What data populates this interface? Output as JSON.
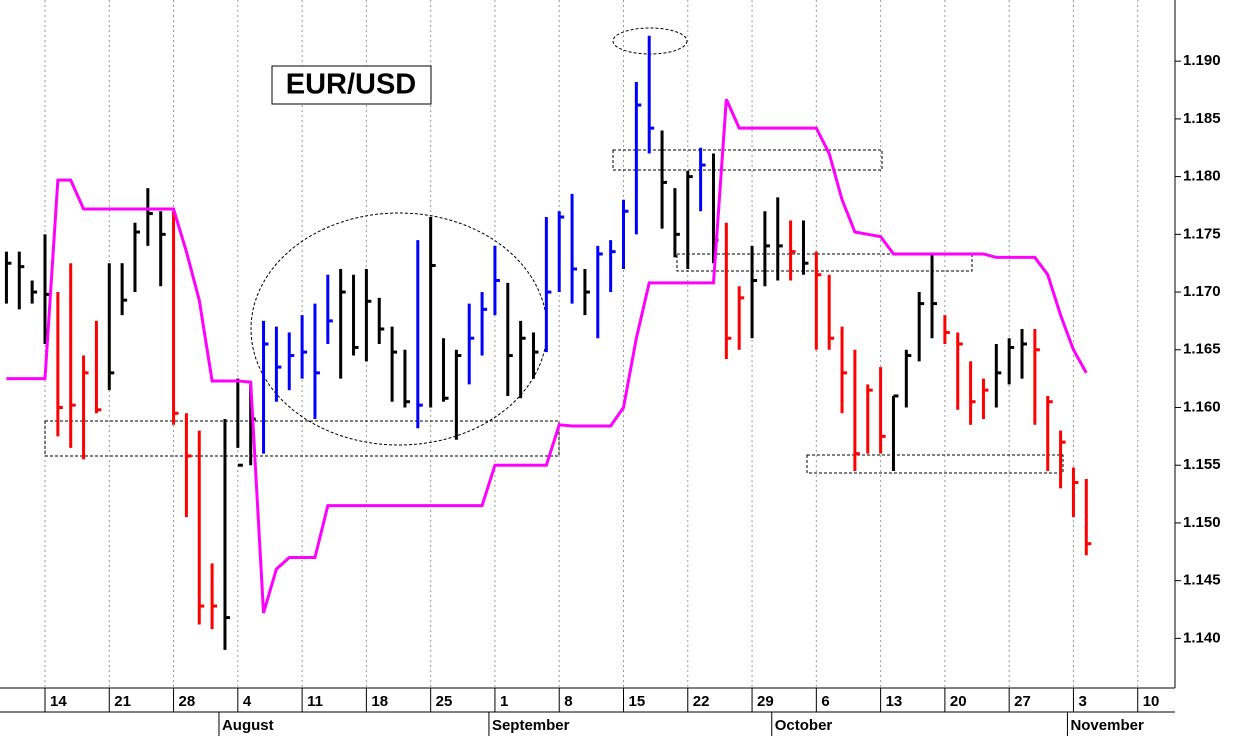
{
  "chart_data": {
    "type": "ohlc",
    "title": "EUR/USD",
    "x": [
      -3,
      -2,
      -1,
      0,
      1,
      2,
      3,
      4,
      5,
      6,
      7,
      8,
      9,
      10,
      11,
      12,
      13,
      14,
      15,
      16,
      17,
      18,
      19,
      20,
      21,
      22,
      23,
      24,
      25,
      26,
      27,
      28,
      29,
      30,
      31,
      32,
      33,
      34,
      35,
      36,
      37,
      38,
      39,
      40,
      41,
      42,
      43,
      44,
      45,
      46,
      47,
      48,
      49,
      50,
      51,
      52,
      53,
      54,
      55,
      56,
      57,
      58,
      59,
      60,
      61,
      62,
      63,
      64,
      65,
      66,
      67,
      68,
      69,
      70,
      71,
      72,
      73,
      74,
      75,
      76,
      77,
      78,
      79,
      80,
      81
    ],
    "high": [
      1.1735,
      1.1735,
      1.171,
      1.175,
      1.17,
      1.1725,
      1.1645,
      1.1675,
      1.1725,
      1.1725,
      1.176,
      1.179,
      1.177,
      1.177,
      1.1595,
      1.158,
      1.1465,
      1.159,
      1.1625,
      1.162,
      1.1675,
      1.167,
      1.1665,
      1.168,
      1.169,
      1.1715,
      1.172,
      1.1715,
      1.172,
      1.1695,
      1.167,
      1.165,
      1.1745,
      1.1765,
      1.166,
      1.165,
      1.169,
      1.17,
      1.174,
      1.1708,
      1.1675,
      1.1665,
      1.1765,
      1.177,
      1.1785,
      1.172,
      1.174,
      1.1745,
      1.178,
      1.1882,
      1.1922,
      1.184,
      1.179,
      1.1805,
      1.1825,
      1.182,
      1.176,
      1.1705,
      1.174,
      1.177,
      1.1782,
      1.1762,
      1.1762,
      1.1735,
      1.1715,
      1.167,
      1.165,
      1.162,
      1.1635,
      1.161,
      1.165,
      1.17,
      1.1732,
      1.168,
      1.1665,
      1.164,
      1.1625,
      1.1655,
      1.166,
      1.1668,
      1.1668,
      1.161,
      1.158,
      1.1548,
      1.1538
    ],
    "low": [
      1.169,
      1.1685,
      1.169,
      1.1655,
      1.1575,
      1.1565,
      1.1555,
      1.1595,
      1.1615,
      1.168,
      1.17,
      1.174,
      1.1705,
      1.1585,
      1.1505,
      1.1412,
      1.1408,
      1.139,
      1.1565,
      1.155,
      1.156,
      1.1605,
      1.1615,
      1.1625,
      1.159,
      1.1655,
      1.1625,
      1.1645,
      1.164,
      1.1655,
      1.1605,
      1.16,
      1.1582,
      1.16,
      1.1605,
      1.1572,
      1.162,
      1.1645,
      1.168,
      1.161,
      1.1608,
      1.1625,
      1.1648,
      1.17,
      1.169,
      1.168,
      1.166,
      1.17,
      1.172,
      1.175,
      1.182,
      1.1755,
      1.173,
      1.172,
      1.177,
      1.1725,
      1.1642,
      1.165,
      1.166,
      1.1705,
      1.171,
      1.171,
      1.1715,
      1.165,
      1.165,
      1.1595,
      1.1545,
      1.156,
      1.156,
      1.1545,
      1.16,
      1.164,
      1.166,
      1.1655,
      1.1598,
      1.1585,
      1.159,
      1.16,
      1.162,
      1.1625,
      1.1585,
      1.1545,
      1.153,
      1.1505,
      1.1472
    ],
    "close": [
      1.1725,
      1.1722,
      1.17,
      1.1698,
      1.16,
      1.1602,
      1.163,
      1.1598,
      1.163,
      1.1693,
      1.1752,
      1.1768,
      1.175,
      1.1595,
      1.1558,
      1.1428,
      1.1428,
      1.1418,
      1.155,
      1.159,
      1.1655,
      1.1635,
      1.1645,
      1.1648,
      1.163,
      1.1675,
      1.17,
      1.1652,
      1.1692,
      1.1668,
      1.1648,
      1.1605,
      1.1602,
      1.1723,
      1.1608,
      1.1645,
      1.166,
      1.1685,
      1.171,
      1.1645,
      1.166,
      1.1648,
      1.17,
      1.1765,
      1.172,
      1.17,
      1.1733,
      1.1735,
      1.177,
      1.1862,
      1.1842,
      1.1795,
      1.175,
      1.18,
      1.181,
      1.1745,
      1.166,
      1.1695,
      1.171,
      1.174,
      1.174,
      1.1735,
      1.1725,
      1.1715,
      1.166,
      1.163,
      1.156,
      1.1615,
      1.1575,
      1.161,
      1.1645,
      1.169,
      1.169,
      1.1665,
      1.1655,
      1.1605,
      1.1615,
      1.163,
      1.1652,
      1.1655,
      1.165,
      1.1605,
      1.157,
      1.1535,
      1.1482
    ],
    "colors": [
      "#000000",
      "#000000",
      "#000000",
      "#000000",
      "#ff0000",
      "#ff0000",
      "#ff0000",
      "#ff0000",
      "#000000",
      "#000000",
      "#000000",
      "#000000",
      "#000000",
      "#ff0000",
      "#ff0000",
      "#ff0000",
      "#ff0000",
      "#000000",
      "#000000",
      "#000000",
      "#0000ff",
      "#0000ff",
      "#0000ff",
      "#0000ff",
      "#0000ff",
      "#0000ff",
      "#000000",
      "#000000",
      "#000000",
      "#000000",
      "#000000",
      "#000000",
      "#0000ff",
      "#000000",
      "#000000",
      "#000000",
      "#0000ff",
      "#0000ff",
      "#0000ff",
      "#000000",
      "#000000",
      "#000000",
      "#0000ff",
      "#0000ff",
      "#0000ff",
      "#000000",
      "#0000ff",
      "#0000ff",
      "#0000ff",
      "#0000ff",
      "#0000ff",
      "#000000",
      "#000000",
      "#000000",
      "#0000ff",
      "#000000",
      "#ff0000",
      "#ff0000",
      "#000000",
      "#000000",
      "#000000",
      "#ff0000",
      "#000000",
      "#ff0000",
      "#ff0000",
      "#ff0000",
      "#ff0000",
      "#ff0000",
      "#ff0000",
      "#000000",
      "#000000",
      "#000000",
      "#000000",
      "#ff0000",
      "#ff0000",
      "#ff0000",
      "#ff0000",
      "#000000",
      "#000000",
      "#000000",
      "#ff0000",
      "#ff0000",
      "#ff0000",
      "#ff0000",
      "#ff0000"
    ],
    "line": {
      "color": "#ff00ff",
      "values": [
        1.1625,
        1.1625,
        1.1625,
        1.1625,
        1.1797,
        1.1797,
        1.1772,
        1.1772,
        1.1772,
        1.1772,
        1.1772,
        1.1772,
        1.1772,
        1.1772,
        1.1735,
        1.1693,
        1.1623,
        1.1623,
        1.1623,
        1.1622,
        1.1422,
        1.146,
        1.147,
        1.147,
        1.147,
        1.1515,
        1.1515,
        1.1515,
        1.1515,
        1.1515,
        1.1515,
        1.1515,
        1.1515,
        1.1515,
        1.1515,
        1.1515,
        1.1515,
        1.1515,
        1.155,
        1.155,
        1.155,
        1.155,
        1.155,
        1.1585,
        1.1584,
        1.1584,
        1.1584,
        1.1584,
        1.16,
        1.166,
        1.1708,
        1.1708,
        1.1708,
        1.1708,
        1.1708,
        1.1708,
        1.1867,
        1.1842,
        1.1842,
        1.1842,
        1.1842,
        1.1842,
        1.1842,
        1.1842,
        1.182,
        1.178,
        1.1752,
        1.175,
        1.1748,
        1.1733,
        1.1733,
        1.1733,
        1.1733,
        1.1733,
        1.1733,
        1.1733,
        1.1733,
        1.173,
        1.173,
        1.173,
        1.173,
        1.1715,
        1.168,
        1.165,
        1.163
      ]
    },
    "xlim": [
      -3.5,
      87.9
    ],
    "ylim": [
      1.1357,
      1.1953
    ],
    "xticks": [
      {
        "value": 0,
        "label": "14"
      },
      {
        "value": 5,
        "label": "21"
      },
      {
        "value": 10,
        "label": "28"
      },
      {
        "value": 15,
        "label": "4"
      },
      {
        "value": 20,
        "label": "11"
      },
      {
        "value": 25,
        "label": "18"
      },
      {
        "value": 30,
        "label": "25"
      },
      {
        "value": 35,
        "label": "1"
      },
      {
        "value": 40,
        "label": "8"
      },
      {
        "value": 45,
        "label": "15"
      },
      {
        "value": 50,
        "label": "22"
      },
      {
        "value": 55,
        "label": "29"
      },
      {
        "value": 60,
        "label": "6"
      },
      {
        "value": 65,
        "label": "13"
      },
      {
        "value": 70,
        "label": "20"
      },
      {
        "value": 75,
        "label": "27"
      },
      {
        "value": 80,
        "label": "3"
      },
      {
        "value": 85,
        "label": "10"
      }
    ],
    "month_ticks": [
      {
        "value": 14,
        "label": "August"
      },
      {
        "value": 35,
        "label": "September"
      },
      {
        "value": 57,
        "label": "October"
      },
      {
        "value": 80,
        "label": "November"
      }
    ],
    "yticks": [
      {
        "value": 1.14,
        "label": "1.140"
      },
      {
        "value": 1.145,
        "label": "1.145"
      },
      {
        "value": 1.15,
        "label": "1.150"
      },
      {
        "value": 1.155,
        "label": "1.155"
      },
      {
        "value": 1.16,
        "label": "1.160"
      },
      {
        "value": 1.165,
        "label": "1.165"
      },
      {
        "value": 1.17,
        "label": "1.170"
      },
      {
        "value": 1.175,
        "label": "1.175"
      },
      {
        "value": 1.18,
        "label": "1.180"
      },
      {
        "value": 1.185,
        "label": "1.185"
      },
      {
        "value": 1.19,
        "label": "1.190"
      }
    ],
    "grid": true
  }
}
